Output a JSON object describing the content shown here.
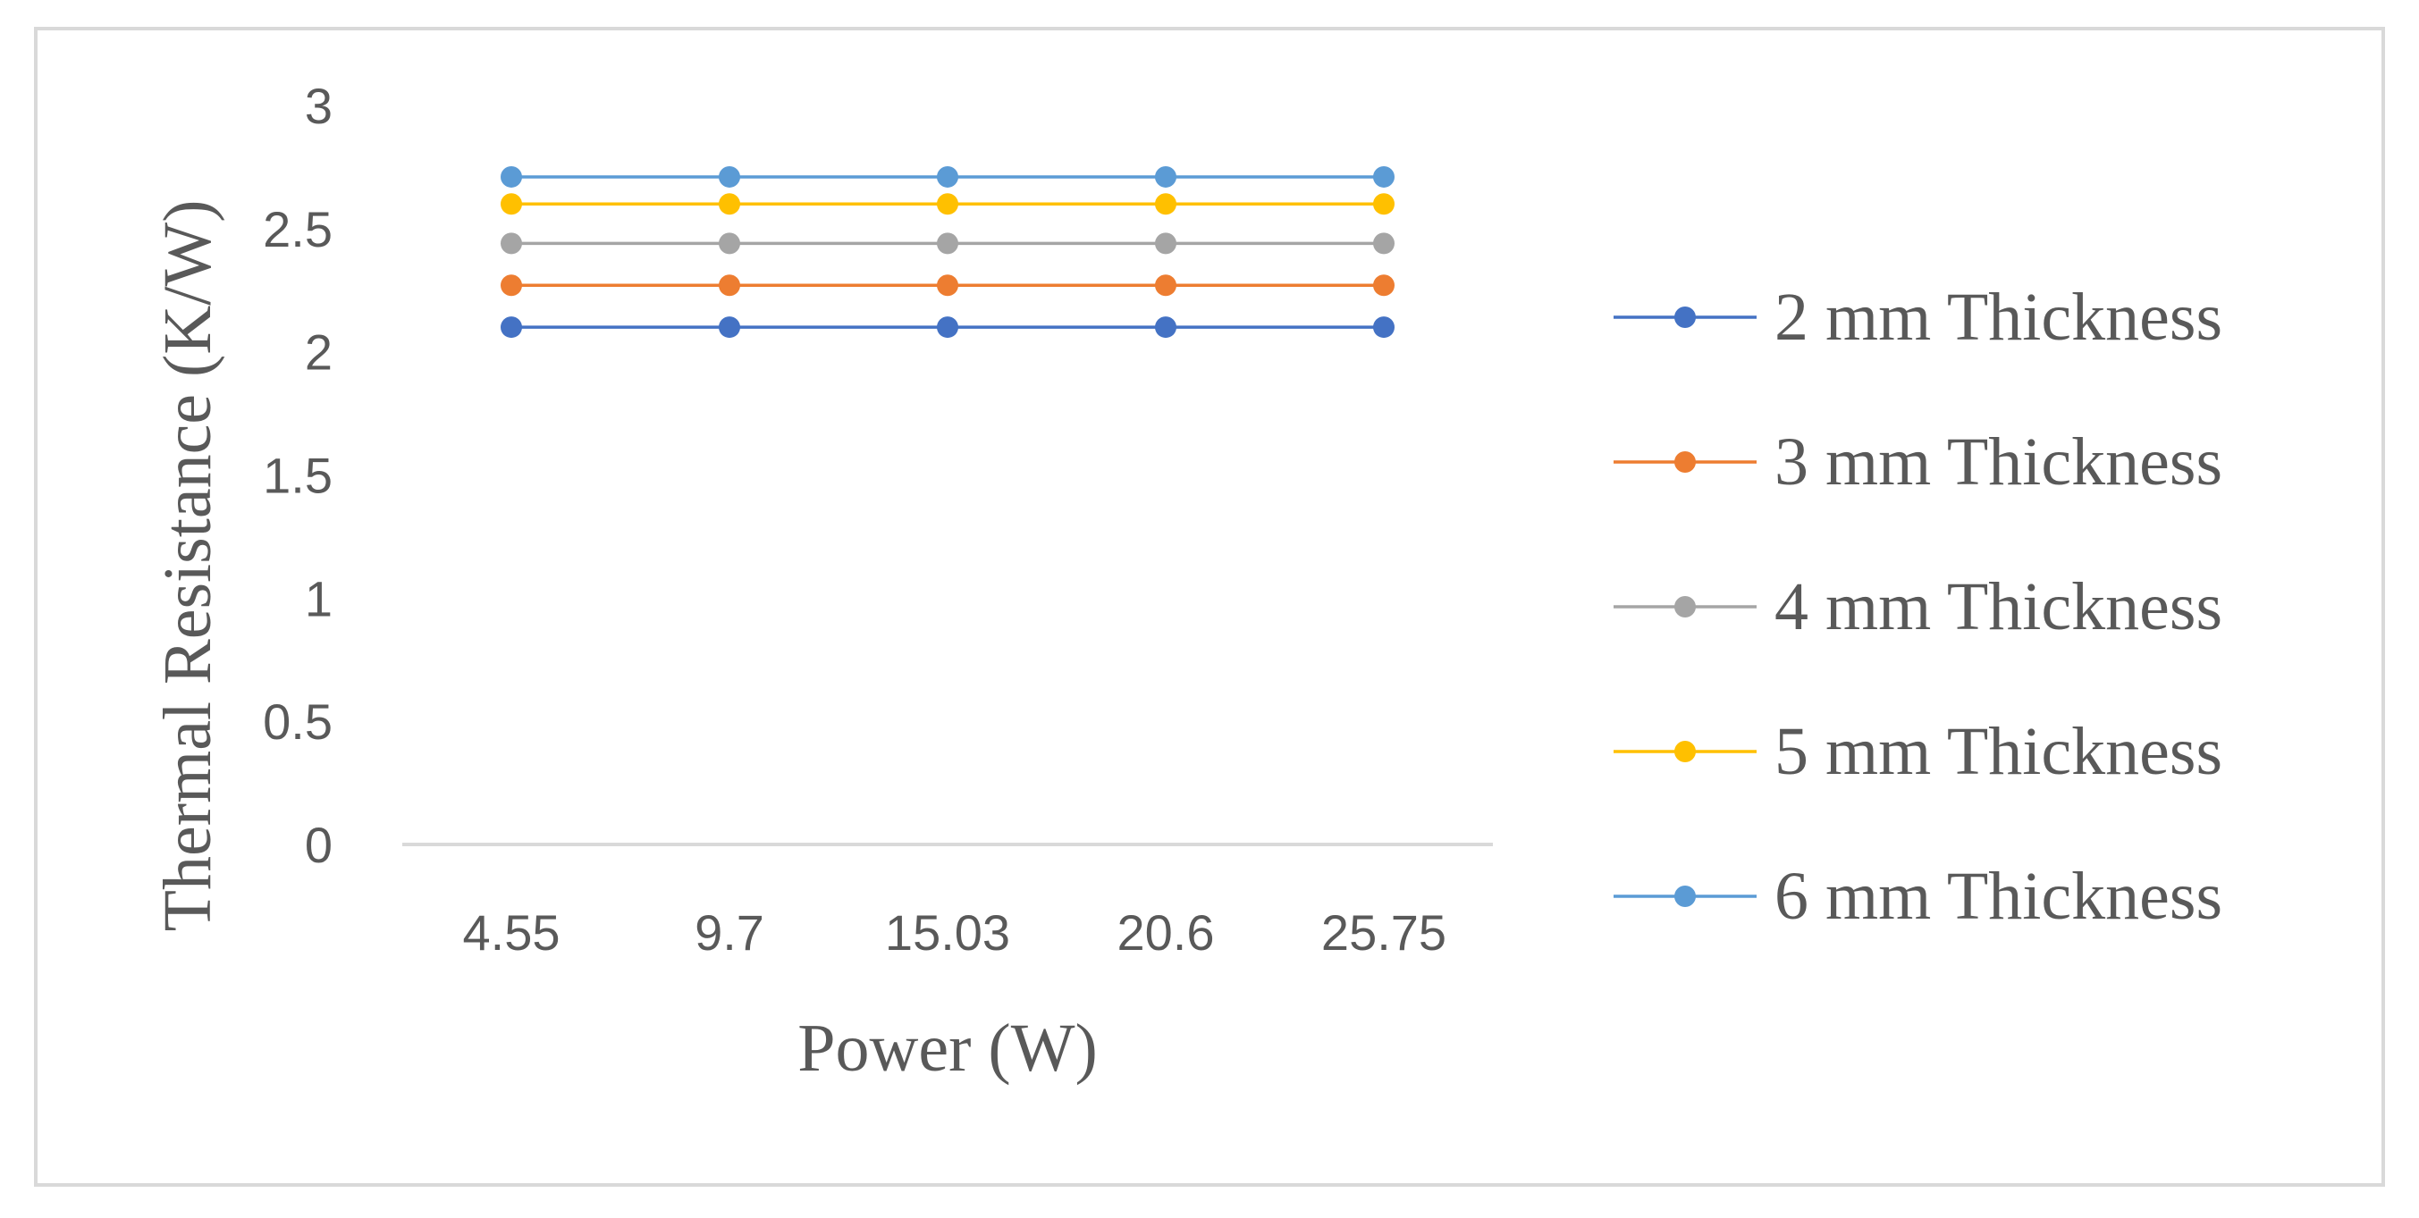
{
  "chart_data": {
    "type": "line",
    "title": "",
    "xlabel": "Power (W)",
    "ylabel": "Thermal Resistance (K/W)",
    "categories": [
      "4.55",
      "9.7",
      "15.03",
      "20.6",
      "25.75"
    ],
    "ylim": [
      0,
      3
    ],
    "yticks": [
      "0",
      "0.5",
      "1",
      "1.5",
      "2",
      "2.5",
      "3"
    ],
    "grid": false,
    "legend_position": "right",
    "series": [
      {
        "name": "2 mm Thickness",
        "color": "#4472C4",
        "values": [
          2.1,
          2.1,
          2.1,
          2.1,
          2.1
        ]
      },
      {
        "name": "3 mm Thickness",
        "color": "#ED7D31",
        "values": [
          2.27,
          2.27,
          2.27,
          2.27,
          2.27
        ]
      },
      {
        "name": "4 mm Thickness",
        "color": "#A5A5A5",
        "values": [
          2.44,
          2.44,
          2.44,
          2.44,
          2.44
        ]
      },
      {
        "name": "5 mm Thickness",
        "color": "#FFC000",
        "values": [
          2.6,
          2.6,
          2.6,
          2.6,
          2.6
        ]
      },
      {
        "name": "6 mm Thickness",
        "color": "#5B9BD5",
        "values": [
          2.71,
          2.71,
          2.71,
          2.71,
          2.71
        ]
      }
    ]
  }
}
